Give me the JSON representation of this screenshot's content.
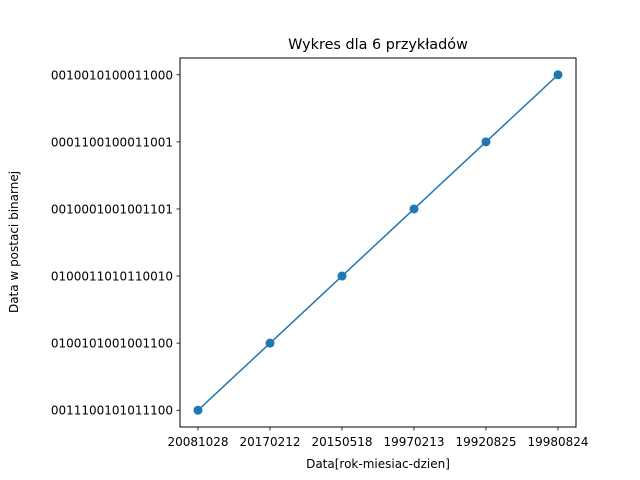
{
  "chart_data": {
    "type": "line",
    "title": "Wykres dla 6 przykładów",
    "xlabel": "Data[rok-miesiac-dzien]",
    "ylabel": "Data w postaci binarnej",
    "categories": [
      "20081028",
      "20170212",
      "20150518",
      "19970213",
      "19920825",
      "19980824"
    ],
    "y_categories": [
      "0011100101011100",
      "0100101001001100",
      "0100011010110010",
      "0010001001001101",
      "0001100100011001",
      "0010010100011000"
    ],
    "series": [
      {
        "x": [
          "20081028",
          "20170212",
          "20150518",
          "19970213",
          "19920825",
          "19980824"
        ],
        "y": [
          "0011100101011100",
          "0100101001001100",
          "0100011010110010",
          "0010001001001101",
          "0001100100011001",
          "0010010100011000"
        ],
        "color": "#1f77b4",
        "marker": "circle"
      }
    ],
    "grid": false,
    "legend": "none"
  }
}
